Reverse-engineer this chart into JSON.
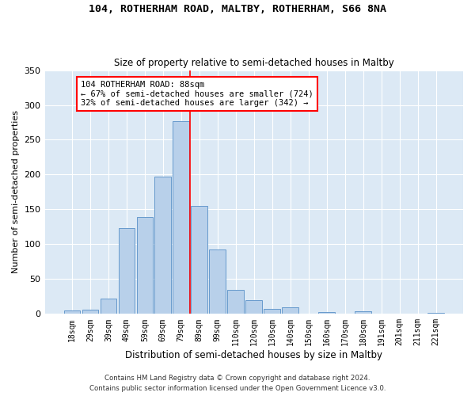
{
  "title": "104, ROTHERHAM ROAD, MALTBY, ROTHERHAM, S66 8NA",
  "subtitle": "Size of property relative to semi-detached houses in Maltby",
  "xlabel": "Distribution of semi-detached houses by size in Maltby",
  "ylabel": "Number of semi-detached properties",
  "bar_labels": [
    "18sqm",
    "29sqm",
    "39sqm",
    "49sqm",
    "59sqm",
    "69sqm",
    "79sqm",
    "89sqm",
    "99sqm",
    "110sqm",
    "120sqm",
    "130sqm",
    "140sqm",
    "150sqm",
    "160sqm",
    "170sqm",
    "180sqm",
    "191sqm",
    "201sqm",
    "211sqm",
    "221sqm"
  ],
  "bar_values": [
    5,
    6,
    22,
    123,
    139,
    197,
    277,
    155,
    93,
    35,
    20,
    7,
    9,
    0,
    3,
    0,
    4,
    0,
    0,
    0,
    2
  ],
  "bar_color": "#b8d0ea",
  "bar_edge_color": "#6699cc",
  "property_line_idx": 6.5,
  "annotation_title": "104 ROTHERHAM ROAD: 88sqm",
  "annotation_line1": "← 67% of semi-detached houses are smaller (724)",
  "annotation_line2": "32% of semi-detached houses are larger (342) →",
  "bg_color": "#dce9f5",
  "grid_color": "#ffffff",
  "ylim": [
    0,
    350
  ],
  "yticks": [
    0,
    50,
    100,
    150,
    200,
    250,
    300,
    350
  ],
  "footer_line1": "Contains HM Land Registry data © Crown copyright and database right 2024.",
  "footer_line2": "Contains public sector information licensed under the Open Government Licence v3.0."
}
